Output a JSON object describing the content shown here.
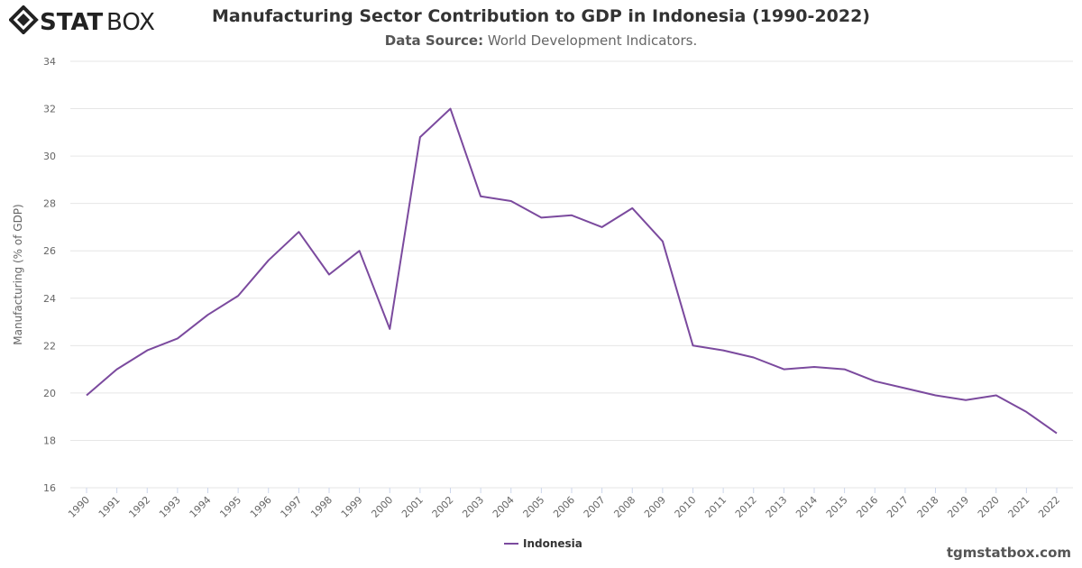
{
  "brand": {
    "logo_text": "STATBOX"
  },
  "header": {
    "title": "Manufacturing Sector Contribution to GDP in Indonesia (1990-2022)",
    "subtitle_label": "Data Source:",
    "subtitle_value": " World Development Indicators."
  },
  "credit": "tgmstatbox.com",
  "colors": {
    "line": "#7b4a9e",
    "grid": "#e6e6e6",
    "axis_text": "#666666"
  },
  "chart_data": {
    "type": "line",
    "title": "Manufacturing Sector Contribution to GDP in Indonesia (1990-2022)",
    "xlabel": "",
    "ylabel": "Manufacturing (% of GDP)",
    "ylim": [
      16,
      34
    ],
    "yticks": [
      16,
      18,
      20,
      22,
      24,
      26,
      28,
      30,
      32,
      34
    ],
    "grid": true,
    "legend_placement": "bottom-center",
    "x": [
      "1990",
      "1991",
      "1992",
      "1993",
      "1994",
      "1995",
      "1996",
      "1997",
      "1998",
      "1999",
      "2000",
      "2001",
      "2002",
      "2003",
      "2004",
      "2005",
      "2006",
      "2007",
      "2008",
      "2009",
      "2010",
      "2011",
      "2012",
      "2013",
      "2014",
      "2015",
      "2016",
      "2017",
      "2018",
      "2019",
      "2020",
      "2021",
      "2022"
    ],
    "series": [
      {
        "name": "Indonesia",
        "values": [
          19.9,
          21.0,
          21.8,
          22.3,
          23.3,
          24.1,
          25.6,
          26.8,
          25.0,
          26.0,
          22.7,
          30.8,
          32.0,
          28.3,
          28.1,
          27.4,
          27.5,
          27.0,
          27.8,
          26.4,
          22.0,
          21.8,
          21.5,
          21.0,
          21.1,
          21.0,
          20.5,
          20.2,
          19.9,
          19.7,
          19.9,
          19.2,
          18.3
        ]
      }
    ]
  }
}
